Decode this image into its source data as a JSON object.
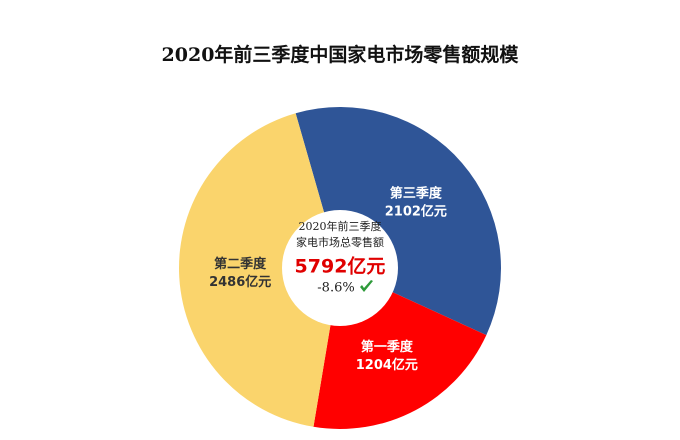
{
  "chart_data": {
    "type": "donut",
    "title": "2020年前三季度中国家电市场零售额规模",
    "categories": [
      "第三季度",
      "第一季度",
      "第二季度"
    ],
    "values": [
      2102,
      1204,
      2486
    ],
    "value_labels": [
      "2102亿元",
      "1204亿元",
      "2486亿元"
    ],
    "colors": [
      "#2f5597",
      "#ff0000",
      "#fad46c"
    ],
    "label_colors": [
      "#ffffff",
      "#ffffff",
      "#333333"
    ],
    "center_lines": [
      "2020年前三季度",
      "家电市场总零售额"
    ],
    "center_value": "5792亿元",
    "center_change": "-8.6%"
  }
}
